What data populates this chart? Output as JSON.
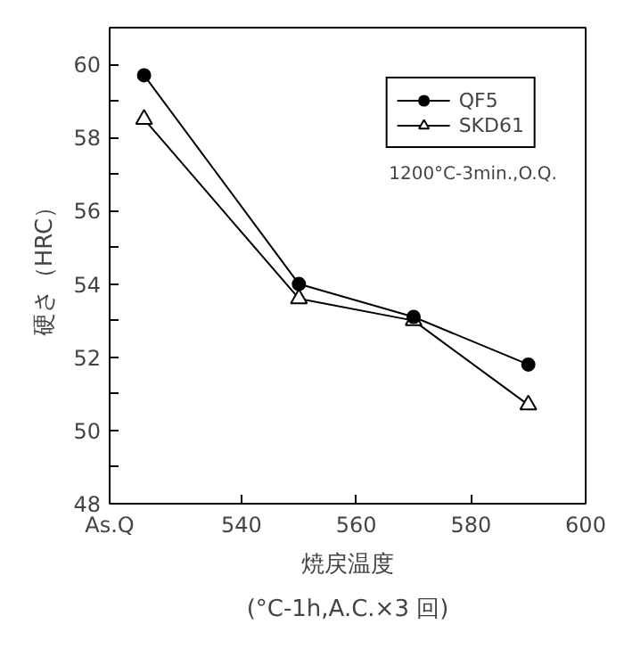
{
  "chart_data": {
    "type": "line",
    "xlabel": "焼戻温度",
    "ylabel": "硬さ（HRC）",
    "x": [
      523,
      550,
      570,
      590
    ],
    "series": [
      {
        "name": "QF5",
        "color": "#000000",
        "marker": "circle",
        "values": [
          59.7,
          54.0,
          53.1,
          51.8
        ]
      },
      {
        "name": "SKD61",
        "color": "#000000",
        "marker": "triangle",
        "values": [
          58.5,
          53.6,
          53.0,
          50.7
        ]
      }
    ],
    "xlim": [
      517,
      600
    ],
    "xticks": [
      {
        "value": 517,
        "label": "As.Q"
      },
      540,
      560,
      580,
      600
    ],
    "ylim": [
      48,
      61
    ],
    "yticks": [
      48,
      {
        "value": 49,
        "label": null
      },
      50,
      {
        "value": 51,
        "label": null
      },
      52,
      {
        "value": 53,
        "label": null
      },
      54,
      {
        "value": 55,
        "label": null
      },
      56,
      {
        "value": 57,
        "label": null
      },
      58,
      {
        "value": 59,
        "label": null
      },
      60
    ],
    "annotations": [
      "1200°C-3min.,O.Q.",
      "(°C-1h,A.C.×3 回)"
    ],
    "legend": "top right",
    "grid": false,
    "line_style": "solid"
  }
}
